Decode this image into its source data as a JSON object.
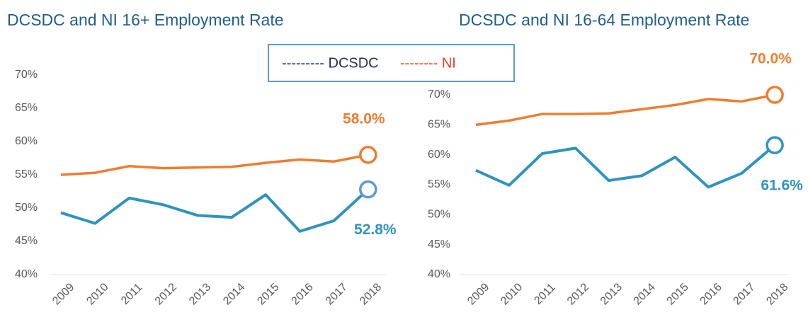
{
  "chart_data": [
    {
      "type": "line",
      "title": "DCSDC and NI 16+ Employment Rate",
      "categories": [
        "2009",
        "2010",
        "2011",
        "2012",
        "2013",
        "2014",
        "2015",
        "2016",
        "2017",
        "2018"
      ],
      "series": [
        {
          "name": "--------- DCSDC",
          "color": "#2f93bf",
          "values": [
            49.3,
            47.7,
            51.5,
            50.5,
            48.9,
            48.6,
            52.0,
            46.5,
            48.1,
            52.8
          ],
          "value_labels": [
            null,
            null,
            null,
            null,
            null,
            null,
            null,
            null,
            null,
            "52.8%"
          ]
        },
        {
          "name": "-------- NI",
          "color": "#ed7d31",
          "values": [
            55.0,
            55.3,
            56.3,
            56.0,
            56.1,
            56.2,
            56.8,
            57.3,
            57.0,
            58.0
          ],
          "value_labels": [
            null,
            null,
            null,
            null,
            null,
            null,
            null,
            null,
            null,
            "58.0%"
          ]
        }
      ],
      "ylim": [
        40,
        70
      ],
      "yticks": [
        {
          "value": 40,
          "label": "40%"
        },
        {
          "value": 45,
          "label": "45%"
        },
        {
          "value": 50,
          "label": "50%"
        },
        {
          "value": 55,
          "label": "55%"
        },
        {
          "value": 60,
          "label": "60%"
        },
        {
          "value": 65,
          "label": "65%"
        },
        {
          "value": 70,
          "label": "70%"
        }
      ]
    },
    {
      "type": "line",
      "title": "DCSDC and NI 16-64 Employment Rate",
      "categories": [
        "2009",
        "2010",
        "2011",
        "2012",
        "2013",
        "2014",
        "2015",
        "2016",
        "2017",
        "2018"
      ],
      "series": [
        {
          "name": "DCSDC",
          "color": "#2f93bf",
          "values": [
            57.4,
            54.9,
            60.2,
            61.1,
            55.7,
            56.5,
            59.6,
            54.6,
            56.9,
            61.6
          ],
          "value_labels": [
            null,
            null,
            null,
            null,
            null,
            null,
            null,
            null,
            null,
            "61.6%"
          ]
        },
        {
          "name": "NI",
          "color": "#ed7d31",
          "values": [
            65.0,
            65.7,
            66.8,
            66.8,
            66.9,
            67.6,
            68.3,
            69.3,
            68.9,
            70.0
          ],
          "value_labels": [
            null,
            null,
            null,
            null,
            null,
            null,
            null,
            null,
            null,
            "70.0%"
          ]
        }
      ],
      "ylim": [
        40,
        70
      ],
      "yticks": [
        {
          "value": 40,
          "label": "40%"
        },
        {
          "value": 45,
          "label": "45%"
        },
        {
          "value": 50,
          "label": "50%"
        },
        {
          "value": 55,
          "label": "55%"
        },
        {
          "value": 60,
          "label": "60%"
        },
        {
          "value": 65,
          "label": "65%"
        },
        {
          "value": 70,
          "label": "70%"
        }
      ]
    }
  ]
}
